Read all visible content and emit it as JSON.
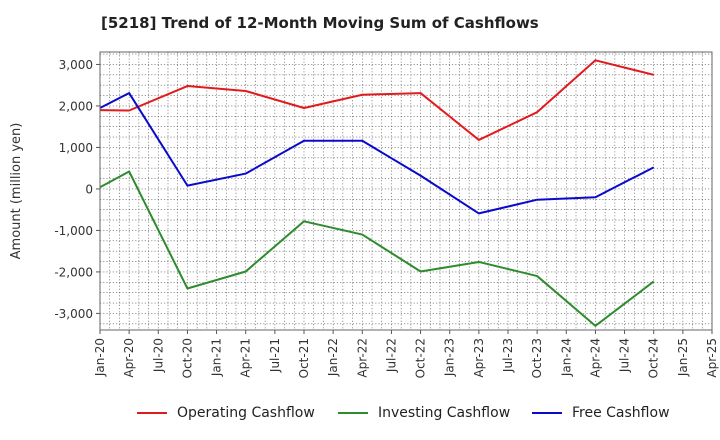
{
  "chart_data": {
    "type": "line",
    "title": "[5218]  Trend of 12-Month Moving Sum of Cashflows",
    "xlabel": "",
    "ylabel": "Amount (million yen)",
    "ylim": [
      -3400,
      3300
    ],
    "yticks": [
      3000,
      2000,
      1000,
      0,
      -1000,
      -2000,
      -3000
    ],
    "ytick_labels": [
      "3,000",
      "2,000",
      "1,000",
      "0",
      "-1,000",
      "-2,000",
      "-3,000"
    ],
    "categories": [
      "Jan-20",
      "Apr-20",
      "Jul-20",
      "Oct-20",
      "Jan-21",
      "Apr-21",
      "Jul-21",
      "Oct-21",
      "Jan-22",
      "Apr-22",
      "Jul-22",
      "Oct-22",
      "Jan-23",
      "Apr-23",
      "Jul-23",
      "Oct-23",
      "Jan-24",
      "Apr-24",
      "Jul-24",
      "Oct-24",
      "Jan-25",
      "Apr-25"
    ],
    "grid": true,
    "legend_position": "bottom",
    "series": [
      {
        "name": "Operating Cashflow",
        "color": "#e31a1c",
        "points": [
          [
            "Jan-20",
            1900
          ],
          [
            "Apr-20",
            1890
          ],
          [
            "Oct-20",
            2480
          ],
          [
            "Apr-21",
            2360
          ],
          [
            "Oct-21",
            1950
          ],
          [
            "Apr-22",
            2270
          ],
          [
            "Oct-22",
            2310
          ],
          [
            "Apr-23",
            1180
          ],
          [
            "Oct-23",
            1850
          ],
          [
            "Apr-24",
            3100
          ],
          [
            "Oct-24",
            2750
          ]
        ]
      },
      {
        "name": "Investing Cashflow",
        "color": "#2e8b2e",
        "points": [
          [
            "Jan-20",
            40
          ],
          [
            "Apr-20",
            420
          ],
          [
            "Oct-20",
            -2400
          ],
          [
            "Apr-21",
            -1990
          ],
          [
            "Oct-21",
            -780
          ],
          [
            "Apr-22",
            -1100
          ],
          [
            "Oct-22",
            -1990
          ],
          [
            "Apr-23",
            -1760
          ],
          [
            "Oct-23",
            -2100
          ],
          [
            "Apr-24",
            -3300
          ],
          [
            "Oct-24",
            -2230
          ]
        ]
      },
      {
        "name": "Free Cashflow",
        "color": "#0a0acd",
        "points": [
          [
            "Jan-20",
            1950
          ],
          [
            "Apr-20",
            2310
          ],
          [
            "Oct-20",
            80
          ],
          [
            "Apr-21",
            370
          ],
          [
            "Oct-21",
            1160
          ],
          [
            "Apr-22",
            1160
          ],
          [
            "Oct-22",
            320
          ],
          [
            "Apr-23",
            -590
          ],
          [
            "Oct-23",
            -260
          ],
          [
            "Apr-24",
            -200
          ],
          [
            "Oct-24",
            520
          ]
        ]
      }
    ]
  }
}
